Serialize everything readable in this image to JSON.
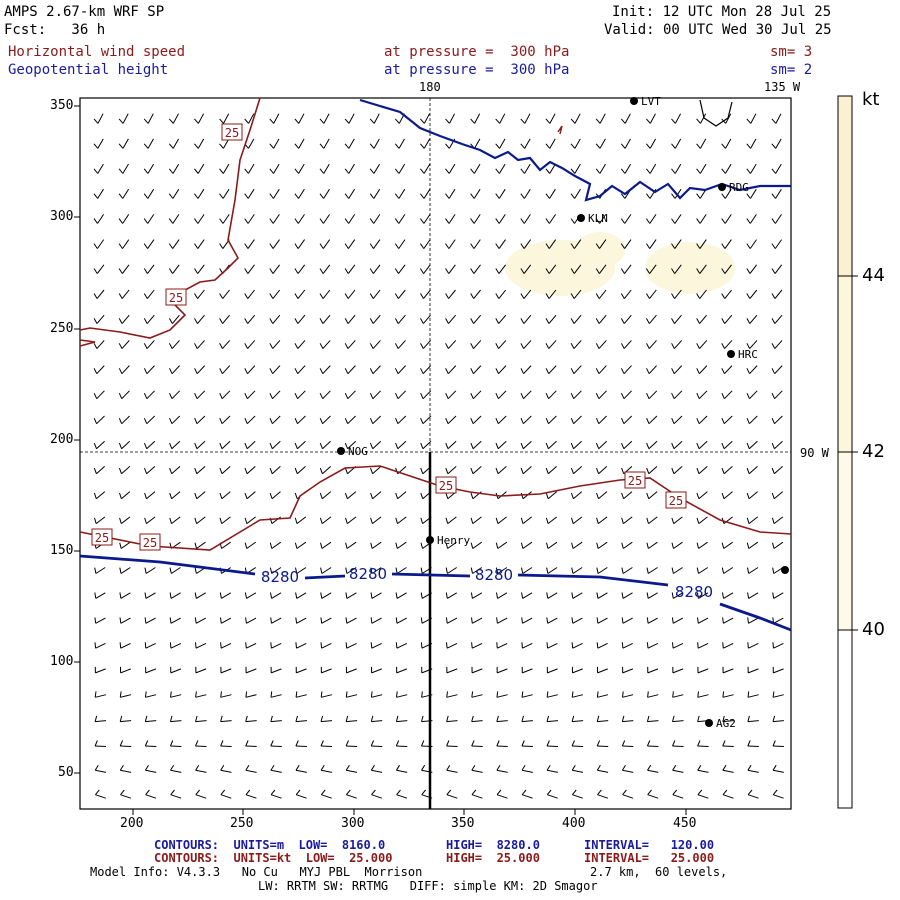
{
  "header": {
    "model": "AMPS 2.67-km WRF SP",
    "fcst": "Fcst:   36 h",
    "init": "Init: 12 UTC Mon 28 Jul 25",
    "valid": "Valid: 00 UTC Wed 30 Jul 25",
    "field1": "Horizontal wind speed",
    "field1_level": "at pressure =  300 hPa",
    "field1_sm": "sm= 3",
    "field2": "Geopotential height",
    "field2_level": "at pressure =  300 hPa",
    "field2_sm": "sm= 2"
  },
  "map": {
    "lon_labels": {
      "top_180": "180",
      "top_135w": "135 W",
      "right_90w": "90 W"
    },
    "x_ticks": [
      "200",
      "250",
      "300",
      "350",
      "400",
      "450"
    ],
    "y_ticks": [
      "350",
      "300",
      "250",
      "200",
      "150",
      "100",
      "50"
    ],
    "stations": [
      {
        "name": "LVT"
      },
      {
        "name": "RDG"
      },
      {
        "name": "KLN"
      },
      {
        "name": "HRC"
      },
      {
        "name": "NOG"
      },
      {
        "name": "Henry"
      },
      {
        "name": "AG2"
      }
    ],
    "height_contour_labels": [
      "8280",
      "8280",
      "8280",
      "8280"
    ],
    "speed_contour_labels": [
      "25",
      "25",
      "25",
      "25",
      "25",
      "25",
      "25"
    ],
    "colors": {
      "height": "#0a1a8c",
      "speed": "#8b1a1a",
      "fill": "#fbf6dc"
    }
  },
  "colorbar": {
    "unit": "kt",
    "labels": [
      "44",
      "42",
      "40"
    ],
    "colors": [
      "#fbf1d2",
      "#fcf6dc",
      "#fefae8",
      "#ffffff"
    ]
  },
  "footer": {
    "line1_a": "CONTOURS:  UNITS=m  LOW=  8160.0",
    "line1_b": "HIGH=  8280.0",
    "line1_c": "INTERVAL=   120.00",
    "line2_a": "CONTOURS:  UNITS=kt  LOW=  25.000",
    "line2_b": "HIGH=  25.000",
    "line2_c": "INTERVAL=   25.000",
    "model_info": "Model Info: V4.3.3   No Cu   MYJ PBL  Morrison",
    "grid_info": "2.7 km,  60 levels,",
    "phys_info": "LW: RRTM SW: RRTMG   DIFF: simple KM: 2D Smagor"
  }
}
